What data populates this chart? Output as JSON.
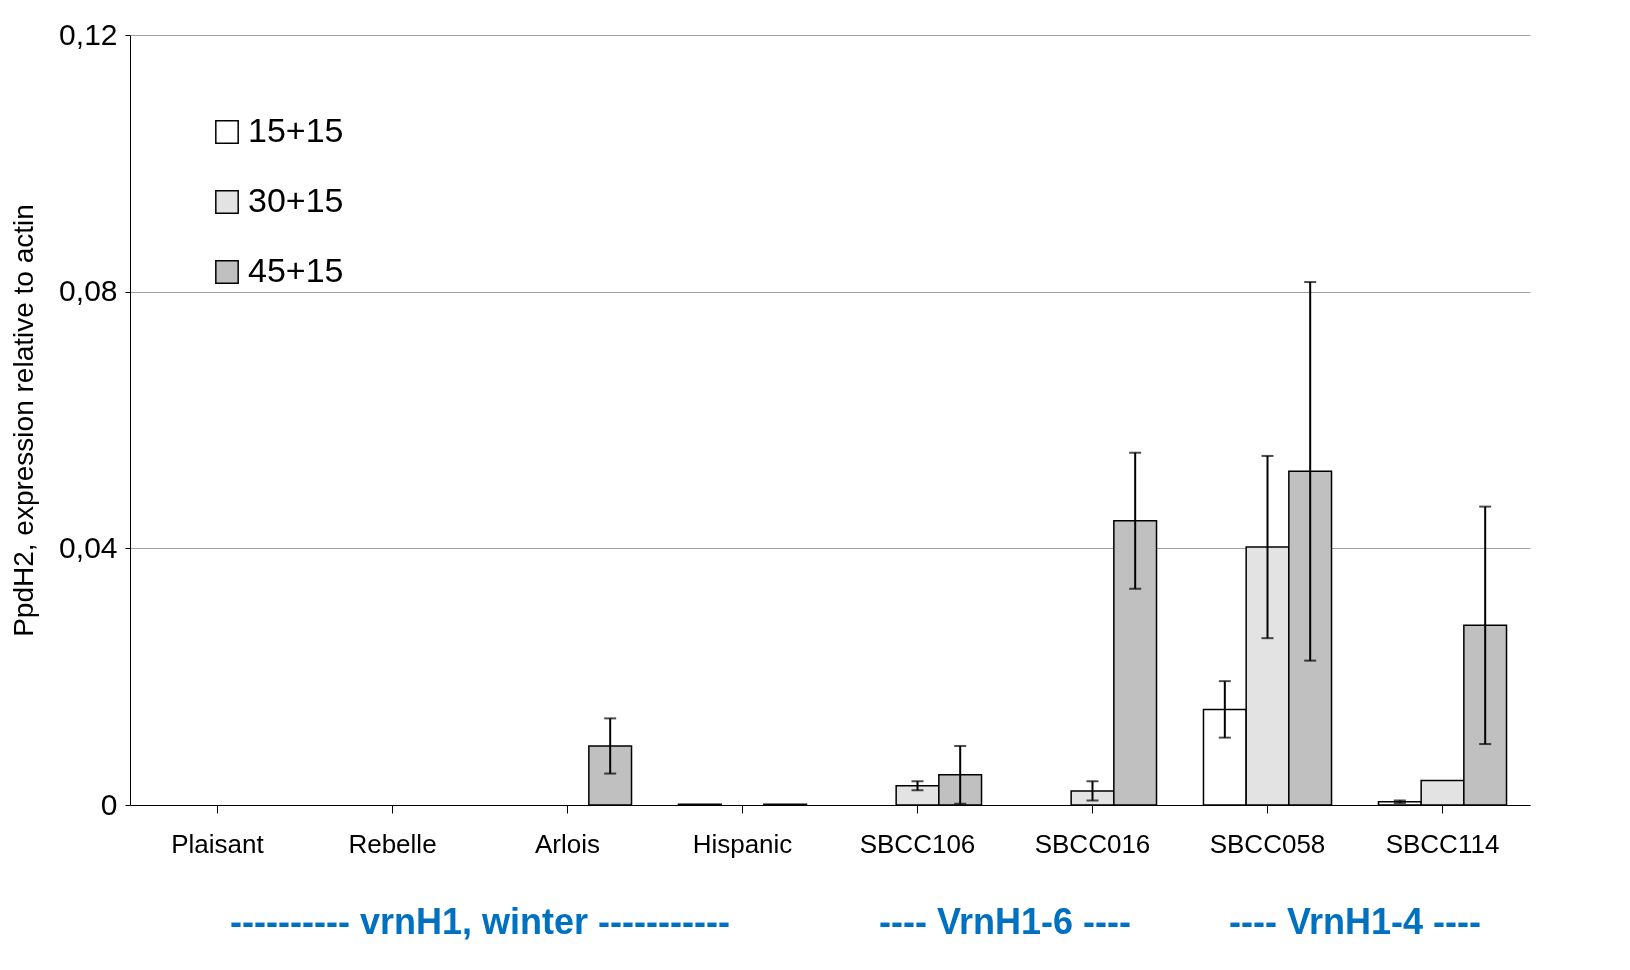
{
  "chart_data": {
    "type": "bar",
    "ylabel": "PpdH2, expression relative to actin",
    "categories": [
      "Plaisant",
      "Rebelle",
      "Arlois",
      "Hispanic",
      "SBCC106",
      "SBCC016",
      "SBCC058",
      "SBCC114"
    ],
    "series": [
      {
        "name": "15+15",
        "color": "#ffffff",
        "values": [
          null,
          null,
          null,
          0.0001,
          null,
          null,
          0.0149,
          0.0005
        ],
        "errors": [
          null,
          null,
          null,
          null,
          null,
          null,
          0.0044,
          0.0002
        ]
      },
      {
        "name": "30+15",
        "color": "#e3e3e3",
        "values": [
          null,
          null,
          null,
          null,
          0.003,
          0.0022,
          0.0402,
          0.0038
        ],
        "errors": [
          null,
          null,
          null,
          null,
          0.0007,
          0.0015,
          0.0142,
          null
        ]
      },
      {
        "name": "45+15",
        "color": "#c0c0c0",
        "values": [
          null,
          null,
          0.0092,
          0.0001,
          0.0047,
          0.0443,
          0.052,
          0.028
        ],
        "errors": [
          null,
          null,
          0.0043,
          null,
          0.0045,
          0.0106,
          0.0295,
          0.0185
        ]
      }
    ],
    "ylim": [
      0,
      0.12
    ],
    "yticks": [
      {
        "value": 0,
        "label": "0"
      },
      {
        "value": 0.04,
        "label": "0,04"
      },
      {
        "value": 0.08,
        "label": "0,08"
      },
      {
        "value": 0.12,
        "label": "0,12"
      }
    ],
    "grid": "y",
    "legend": "top left",
    "annotations": [
      "---------- vrnH1, winter -----------",
      "---- VrnH1-6 ----",
      "---- VrnH1-4 ----"
    ]
  }
}
